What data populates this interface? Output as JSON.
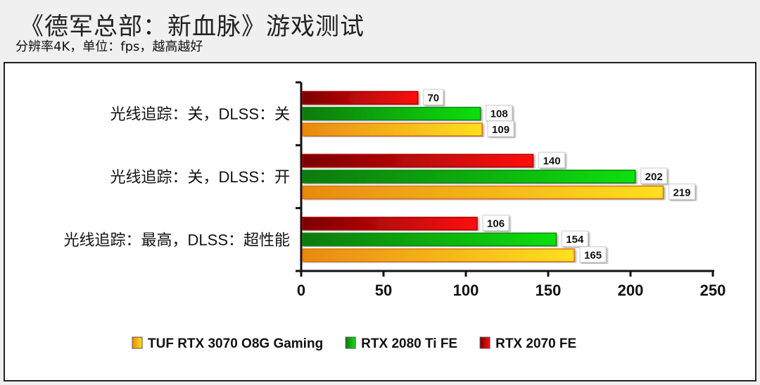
{
  "header": {
    "title": "《德军总部：新血脉》游戏测试",
    "subtitle": "分辨率4K，单位：fps，越高越好"
  },
  "chart_data": {
    "type": "bar",
    "orientation": "horizontal",
    "categories": [
      "光线追踪：关，DLSS：关",
      "光线追踪：关，DLSS：开",
      "光线追踪：最高，DLSS：超性能"
    ],
    "series": [
      {
        "name": "RTX 2070 FE",
        "color": "#e00000",
        "values": [
          70,
          140,
          106
        ]
      },
      {
        "name": "RTX 2080 Ti FE",
        "color": "#10b010",
        "values": [
          108,
          202,
          154
        ]
      },
      {
        "name": "TUF RTX 3070 O8G Gaming",
        "color": "#f0a818",
        "values": [
          109,
          219,
          165
        ]
      }
    ],
    "xlim": [
      0,
      250
    ],
    "xticks": [
      "0",
      "50",
      "100",
      "150",
      "200",
      "250"
    ],
    "legend_order": [
      "TUF RTX 3070 O8G Gaming",
      "RTX 2080 Ti FE",
      "RTX 2070 FE"
    ],
    "legend_position": "bottom",
    "grid": false
  }
}
